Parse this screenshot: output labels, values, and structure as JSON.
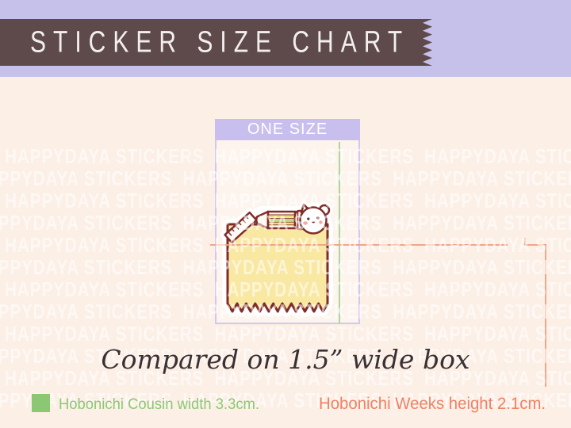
{
  "banner": {
    "title": "STICKER SIZE CHART",
    "ribbon_color": "#5e4a4b",
    "strip_color": "#c6c1ea",
    "text_color": "#f3efee"
  },
  "page": {
    "background_color": "#fcefe6"
  },
  "watermark": {
    "text": "HAPPYDAYA STICKERS",
    "color": "rgba(255,255,255,0.55)",
    "rows": 12
  },
  "size_box": {
    "header_label": "ONE SIZE",
    "header_bg": "#c8bfee",
    "border_color": "#cfc8f0"
  },
  "sticker": {
    "icon": "kawaii-yellow-note-with-ruler-pencil-and-face-sticker",
    "note_color": "#f9e8a2",
    "outline_color": "#812c2c"
  },
  "caption": {
    "text": "Compared on 1.5” wide box",
    "color": "#3a3134"
  },
  "legend": {
    "cousin": {
      "label": "Hobonichi Cousin width 3.3cm.",
      "color": "#8cc873"
    },
    "weeks": {
      "label": "Hobonichi Weeks height 2.1cm.",
      "color": "#ee8165"
    }
  },
  "measurement_lines": {
    "cousin_width_line_color": "#aed69c",
    "weeks_height_line_color": "#eda183"
  }
}
